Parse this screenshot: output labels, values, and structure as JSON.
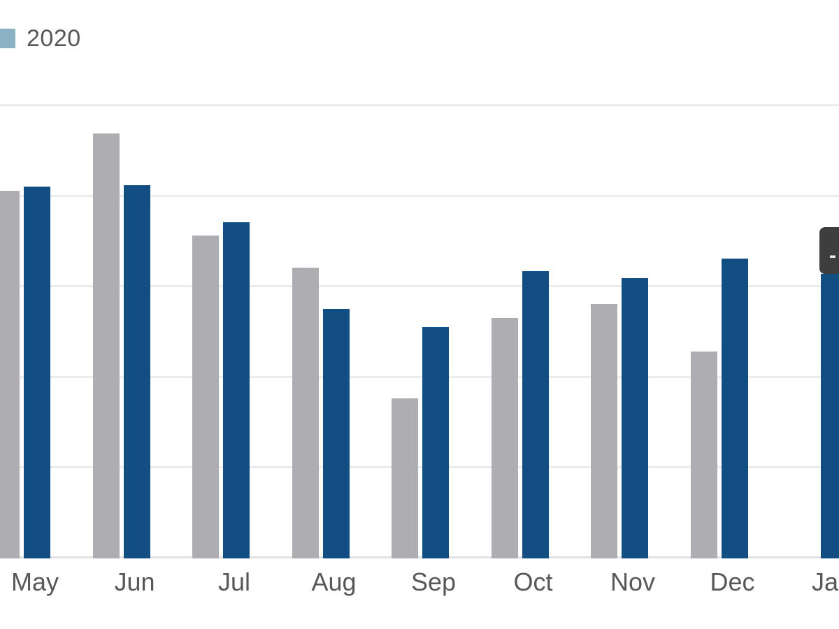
{
  "chart_data": {
    "type": "bar",
    "title": "",
    "xlabel": "",
    "ylabel": "",
    "categories": [
      "May",
      "Jun",
      "Jul",
      "Aug",
      "Sep",
      "Oct",
      "Nov",
      "Dec",
      "Jan"
    ],
    "series": [
      {
        "key": "gray",
        "legend_label": "",
        "color": "#aeaeb2",
        "values": [
          4.05,
          4.68,
          3.56,
          3.2,
          1.76,
          2.65,
          2.8,
          2.28,
          null
        ]
      },
      {
        "key": "blue",
        "legend_label": "",
        "color": "#134e82",
        "values": [
          4.1,
          4.11,
          3.7,
          2.75,
          2.55,
          3.16,
          3.09,
          3.3,
          3.13
        ]
      }
    ],
    "ylim": [
      0,
      5
    ],
    "gridline_values": [
      1,
      2,
      3,
      4,
      5
    ],
    "grid_on": true,
    "y_axis_tick_labels_visible": false,
    "notes_cropped": "left edge of May gray bar, Jan label and Jan blue bar, legend swatch and tooltip are cut off by image edges",
    "legend": {
      "position": "top-left",
      "items": [
        {
          "label": "2020",
          "color": "#8ab1c4"
        }
      ]
    },
    "tooltip": {
      "visible": true,
      "text": "-",
      "background": "#3e3e3e"
    }
  }
}
